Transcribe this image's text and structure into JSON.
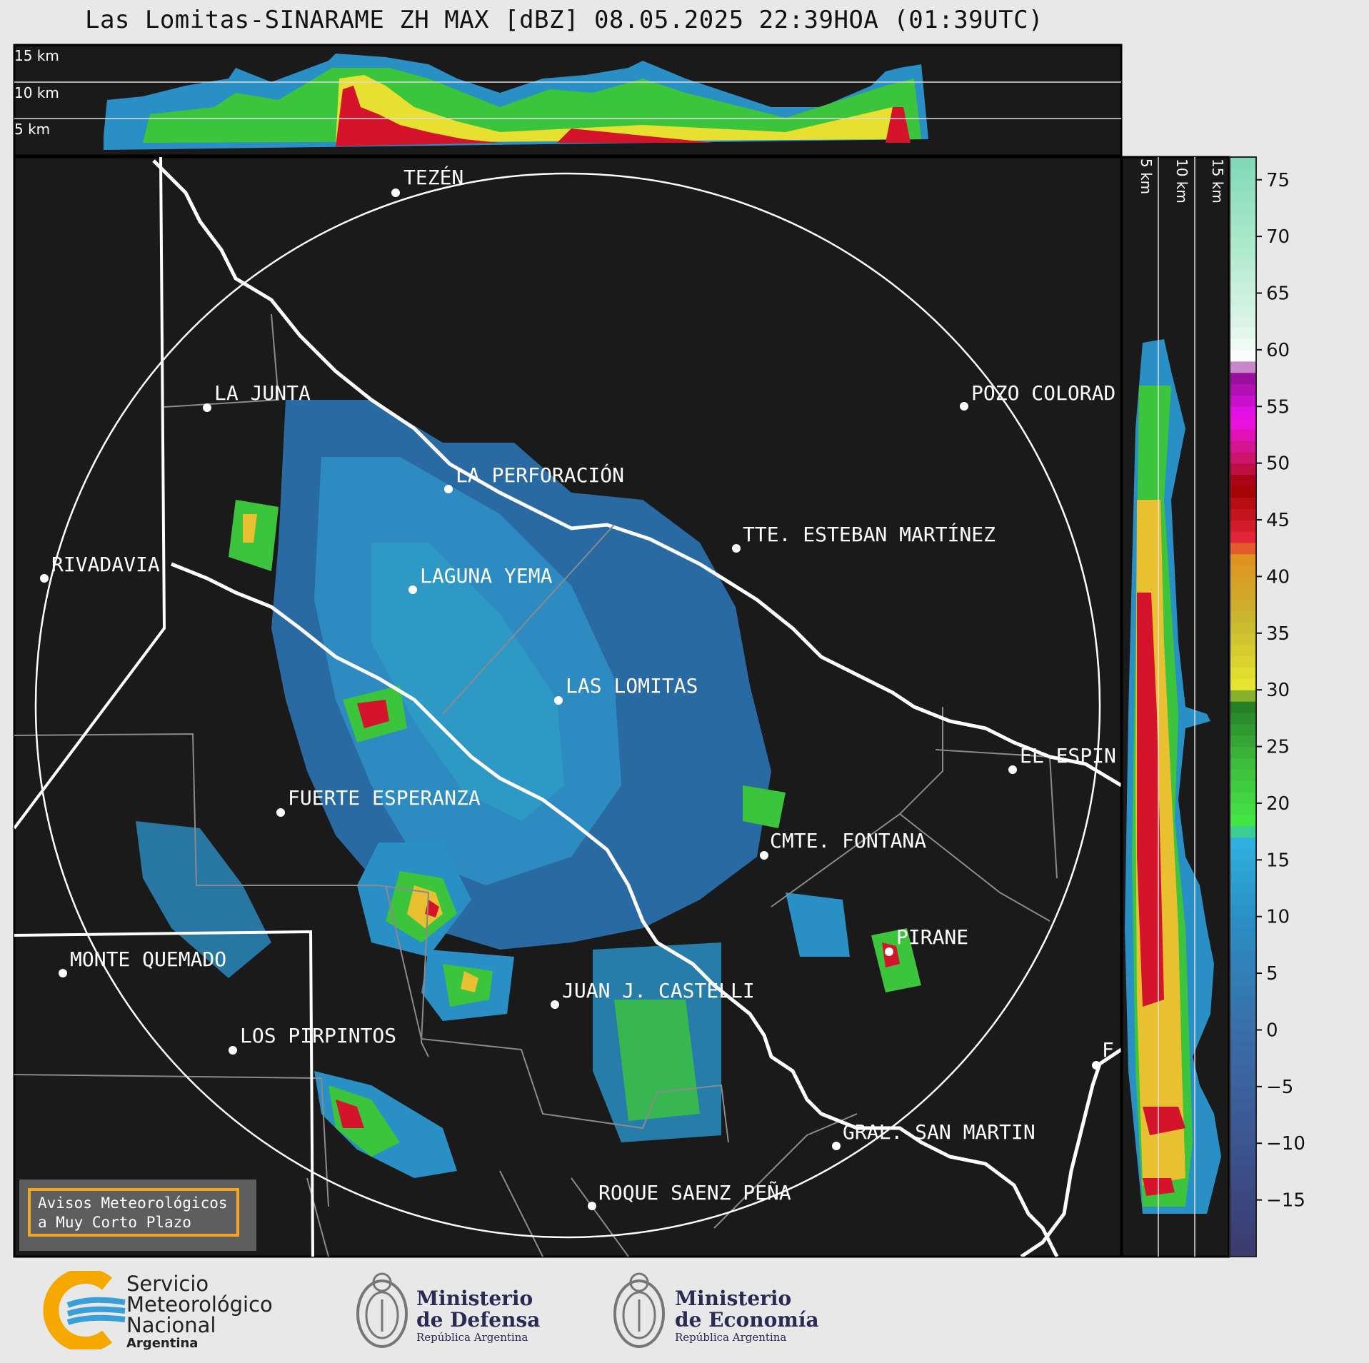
{
  "title": "Las Lomitas-SINARAME ZH MAX [dBZ] 08.05.2025 22:39HOA (01:39UTC)",
  "top_section_altitudes": [
    "15 km",
    "10 km",
    "5 km"
  ],
  "right_section_altitudes": [
    "5 km",
    "10 km",
    "15 km"
  ],
  "cities": [
    {
      "name": "TEZÉN"
    },
    {
      "name": "LA JUNTA"
    },
    {
      "name": "POZO COLORAD"
    },
    {
      "name": "LA PERFORACIÓN"
    },
    {
      "name": "TTE. ESTEBAN MARTÍNEZ"
    },
    {
      "name": "RIVADAVIA"
    },
    {
      "name": "LAGUNA YEMA"
    },
    {
      "name": "LAS LOMITAS"
    },
    {
      "name": "EL ESPIN"
    },
    {
      "name": "FUERTE ESPERANZA"
    },
    {
      "name": "CMTE. FONTANA"
    },
    {
      "name": "PIRANE"
    },
    {
      "name": "MONTE QUEMADO"
    },
    {
      "name": "JUAN J. CASTELLI"
    },
    {
      "name": "LOS PIRPINTOS"
    },
    {
      "name": "F"
    },
    {
      "name": "GRAL. SAN MARTIN"
    },
    {
      "name": "ROQUE SAENZ PEÑA"
    }
  ],
  "colorbar": {
    "ticks": [
      "75",
      "70",
      "65",
      "60",
      "55",
      "50",
      "45",
      "40",
      "35",
      "30",
      "25",
      "20",
      "15",
      "10",
      "5",
      "0",
      "−5",
      "−10",
      "−15"
    ],
    "range": [
      -20,
      77
    ]
  },
  "warning_box": {
    "line1": "Avisos Meteorológicos",
    "line2": "a Muy Corto Plazo"
  },
  "logos": {
    "smn": {
      "line1": "Servicio",
      "line2": "Meteorológico",
      "line3": "Nacional",
      "sub": "Argentina"
    },
    "defensa": {
      "line1": "Ministerio",
      "line2": "de Defensa",
      "sub": "República Argentina"
    },
    "economia": {
      "line1": "Ministerio",
      "line2": "de Economía",
      "sub": "República Argentina"
    }
  },
  "colors": {
    "background": "#1a1a1a",
    "page": "#e8e8e8",
    "warning_border": "#f5a623"
  }
}
